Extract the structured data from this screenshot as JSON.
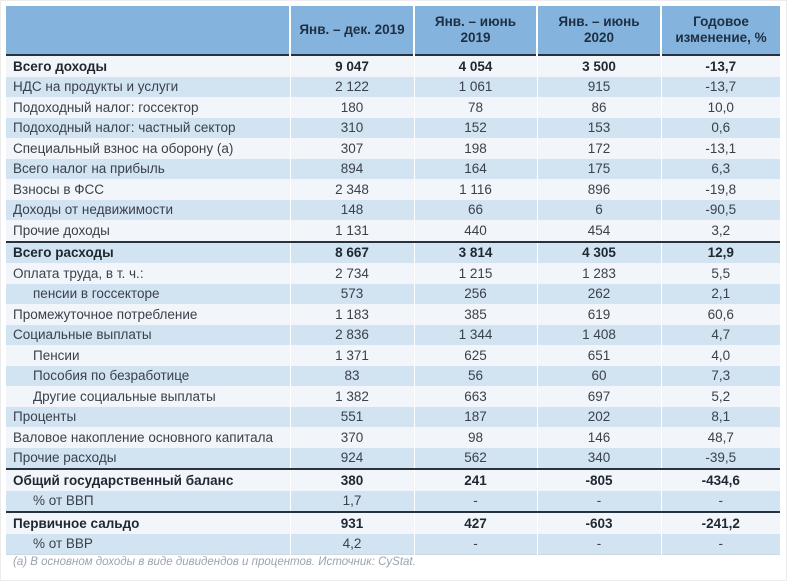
{
  "chart_data": {
    "type": "table",
    "columns": [
      "",
      "Янв. – дек. 2019",
      "Янв. – июнь 2019",
      "Янв. – июнь 2020",
      "Годовое изменение, %"
    ],
    "rows": [
      {
        "label": "Всего доходы",
        "values": [
          "9 047",
          "4 054",
          "3 500",
          "-13,7"
        ],
        "bold": true,
        "indent": false,
        "topline": false
      },
      {
        "label": "НДС на продукты и услуги",
        "values": [
          "2 122",
          "1 061",
          "915",
          "-13,7"
        ],
        "bold": false,
        "indent": false,
        "topline": false
      },
      {
        "label": "Подоходный налог: госсектор",
        "values": [
          "180",
          "78",
          "86",
          "10,0"
        ],
        "bold": false,
        "indent": false,
        "topline": false
      },
      {
        "label": "Подоходный налог: частный сектор",
        "values": [
          "310",
          "152",
          "153",
          "0,6"
        ],
        "bold": false,
        "indent": false,
        "topline": false
      },
      {
        "label": "Специальный взнос на оборону (а)",
        "values": [
          "307",
          "198",
          "172",
          "-13,1"
        ],
        "bold": false,
        "indent": false,
        "topline": false
      },
      {
        "label": "Всего налог на прибыль",
        "values": [
          "894",
          "164",
          "175",
          "6,3"
        ],
        "bold": false,
        "indent": false,
        "topline": false
      },
      {
        "label": "Взносы в ФСС",
        "values": [
          "2 348",
          "1 116",
          "896",
          "-19,8"
        ],
        "bold": false,
        "indent": false,
        "topline": false
      },
      {
        "label": "Доходы от недвижимости",
        "values": [
          "148",
          "66",
          "6",
          "-90,5"
        ],
        "bold": false,
        "indent": false,
        "topline": false
      },
      {
        "label": "Прочие доходы",
        "values": [
          "1 131",
          "440",
          "454",
          "3,2"
        ],
        "bold": false,
        "indent": false,
        "topline": false
      },
      {
        "label": "Всего расходы",
        "values": [
          "8 667",
          "3 814",
          "4 305",
          "12,9"
        ],
        "bold": true,
        "indent": false,
        "topline": true
      },
      {
        "label": "Оплата труда, в т. ч.:",
        "values": [
          "2 734",
          "1 215",
          "1 283",
          "5,5"
        ],
        "bold": false,
        "indent": false,
        "topline": false
      },
      {
        "label": "пенсии в госсекторе",
        "values": [
          "573",
          "256",
          "262",
          "2,1"
        ],
        "bold": false,
        "indent": true,
        "topline": false
      },
      {
        "label": "Промежуточное потребление",
        "values": [
          "1 183",
          "385",
          "619",
          "60,6"
        ],
        "bold": false,
        "indent": false,
        "topline": false
      },
      {
        "label": "Социальные выплаты",
        "values": [
          "2 836",
          "1 344",
          "1 408",
          "4,7"
        ],
        "bold": false,
        "indent": false,
        "topline": false
      },
      {
        "label": "Пенсии",
        "values": [
          "1 371",
          "625",
          "651",
          "4,0"
        ],
        "bold": false,
        "indent": true,
        "topline": false
      },
      {
        "label": "Пособия по безработице",
        "values": [
          "83",
          "56",
          "60",
          "7,3"
        ],
        "bold": false,
        "indent": true,
        "topline": false
      },
      {
        "label": "Другие социальные выплаты",
        "values": [
          "1 382",
          "663",
          "697",
          "5,2"
        ],
        "bold": false,
        "indent": true,
        "topline": false
      },
      {
        "label": "Проценты",
        "values": [
          "551",
          "187",
          "202",
          "8,1"
        ],
        "bold": false,
        "indent": false,
        "topline": false
      },
      {
        "label": "Валовое накопление основного капитала",
        "values": [
          "370",
          "98",
          "146",
          "48,7"
        ],
        "bold": false,
        "indent": false,
        "topline": false
      },
      {
        "label": "Прочие расходы",
        "values": [
          "924",
          "562",
          "340",
          "-39,5"
        ],
        "bold": false,
        "indent": false,
        "topline": false
      },
      {
        "label": "Общий государственный баланс",
        "values": [
          "380",
          "241",
          "-805",
          "-434,6"
        ],
        "bold": true,
        "indent": false,
        "topline": true
      },
      {
        "label": "% от ВВП",
        "values": [
          "1,7",
          "-",
          "-",
          "-"
        ],
        "bold": false,
        "indent": true,
        "topline": false
      },
      {
        "label": "Первичное сальдо",
        "values": [
          "931",
          "427",
          "-603",
          "-241,2"
        ],
        "bold": true,
        "indent": false,
        "topline": true
      },
      {
        "label": "% от ВВР",
        "values": [
          "4,2",
          "-",
          "-",
          "-"
        ],
        "bold": false,
        "indent": true,
        "topline": false
      }
    ]
  },
  "footnote": "(а) В основном доходы в виде дивидендов и процентов. Источник: CyStat.",
  "colors": {
    "header_bg": "#84B3DE",
    "header_text": "#1E2F42",
    "stripe_light": "#F2F6FB",
    "stripe_blue": "#D2E3F2",
    "dark_line": "#26323E",
    "body_text": "#3B414B",
    "bold_text": "#1F2730",
    "footnote_text": "#9AA4B0"
  }
}
